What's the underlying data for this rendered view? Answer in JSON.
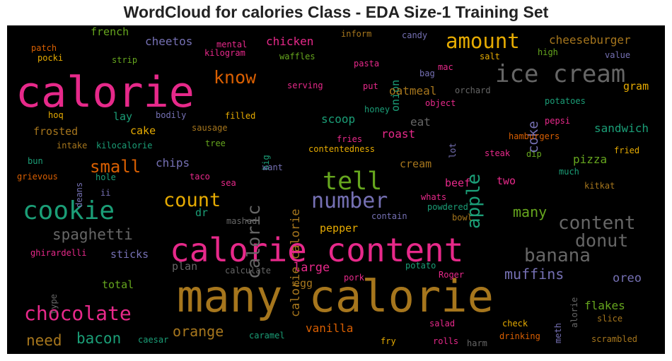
{
  "title": "WordCloud for calories Class - EDA Size-1 Training Set",
  "colors": {
    "pink": "#e7298a",
    "gold": "#a6761d",
    "teal": "#1b9e77",
    "orange": "#d95f02",
    "purple": "#7570b3",
    "green": "#66a61e",
    "yellow": "#e6ab02",
    "gray": "#666666"
  },
  "words": [
    {
      "text": "calorie",
      "color": "pink"
    },
    {
      "text": "many calorie",
      "color": "gold"
    },
    {
      "text": "calorie content",
      "color": "pink"
    },
    {
      "text": "ice cream",
      "color": "gray"
    },
    {
      "text": "cookie",
      "color": "teal"
    },
    {
      "text": "tell",
      "color": "green"
    },
    {
      "text": "number",
      "color": "purple"
    },
    {
      "text": "chocolate",
      "color": "pink"
    },
    {
      "text": "amount",
      "color": "yellow"
    },
    {
      "text": "caloric",
      "color": "gray"
    },
    {
      "text": "apple",
      "color": "teal"
    },
    {
      "text": "count",
      "color": "yellow"
    },
    {
      "text": "content",
      "color": "gray"
    },
    {
      "text": "banana",
      "color": "gray"
    },
    {
      "text": "donut",
      "color": "gray"
    },
    {
      "text": "know",
      "color": "orange"
    },
    {
      "text": "small",
      "color": "orange"
    },
    {
      "text": "spaghetti",
      "color": "gray"
    },
    {
      "text": "muffins",
      "color": "purple"
    },
    {
      "text": "bacon",
      "color": "teal"
    },
    {
      "text": "need",
      "color": "gold"
    },
    {
      "text": "orange",
      "color": "gold"
    },
    {
      "text": "many",
      "color": "green"
    },
    {
      "text": "coke",
      "color": "purple"
    },
    {
      "text": "calorie calorie",
      "color": "gold"
    },
    {
      "text": "cheeseburger",
      "color": "gold"
    },
    {
      "text": "onion",
      "color": "teal"
    },
    {
      "text": "pizza",
      "color": "green"
    },
    {
      "text": "sandwich",
      "color": "teal"
    },
    {
      "text": "flakes",
      "color": "green"
    },
    {
      "text": "oreo",
      "color": "purple"
    },
    {
      "text": "vanilla",
      "color": "orange"
    },
    {
      "text": "large",
      "color": "pink"
    },
    {
      "text": "oatmeal",
      "color": "gold"
    },
    {
      "text": "chicken",
      "color": "pink"
    },
    {
      "text": "cheetos",
      "color": "purple"
    },
    {
      "text": "french",
      "color": "green"
    },
    {
      "text": "frosted",
      "color": "gold"
    },
    {
      "text": "cake",
      "color": "yellow"
    },
    {
      "text": "lay",
      "color": "teal"
    },
    {
      "text": "chips",
      "color": "purple"
    },
    {
      "text": "scoop",
      "color": "teal"
    },
    {
      "text": "roast",
      "color": "pink"
    },
    {
      "text": "eat",
      "color": "gray"
    },
    {
      "text": "cream",
      "color": "gold"
    },
    {
      "text": "beef",
      "color": "pink"
    },
    {
      "text": "two",
      "color": "pink"
    },
    {
      "text": "pepper",
      "color": "yellow"
    },
    {
      "text": "sticks",
      "color": "purple"
    },
    {
      "text": "plan",
      "color": "gray"
    },
    {
      "text": "total",
      "color": "green"
    },
    {
      "text": "egg",
      "color": "gold"
    },
    {
      "text": "gram",
      "color": "yellow"
    },
    {
      "text": "dr",
      "color": "teal"
    },
    {
      "text": "patch",
      "color": "orange"
    },
    {
      "text": "pocki",
      "color": "yellow"
    },
    {
      "text": "strip",
      "color": "green"
    },
    {
      "text": "mental",
      "color": "pink"
    },
    {
      "text": "kilogram",
      "color": "pink"
    },
    {
      "text": "waffles",
      "color": "green"
    },
    {
      "text": "inform",
      "color": "gold"
    },
    {
      "text": "candy",
      "color": "purple"
    },
    {
      "text": "pasta",
      "color": "pink"
    },
    {
      "text": "salt",
      "color": "yellow"
    },
    {
      "text": "high",
      "color": "green"
    },
    {
      "text": "value",
      "color": "purple"
    },
    {
      "text": "mac",
      "color": "pink"
    },
    {
      "text": "bag",
      "color": "purple"
    },
    {
      "text": "put",
      "color": "pink"
    },
    {
      "text": "orchard",
      "color": "gray"
    },
    {
      "text": "serving",
      "color": "pink"
    },
    {
      "text": "potatoes",
      "color": "teal"
    },
    {
      "text": "hoq",
      "color": "yellow"
    },
    {
      "text": "bodily",
      "color": "purple"
    },
    {
      "text": "filled",
      "color": "yellow"
    },
    {
      "text": "sausage",
      "color": "gold"
    },
    {
      "text": "object",
      "color": "pink"
    },
    {
      "text": "honey",
      "color": "teal"
    },
    {
      "text": "pepsi",
      "color": "pink"
    },
    {
      "text": "lot",
      "color": "purple"
    },
    {
      "text": "hamburgers",
      "color": "orange"
    },
    {
      "text": "intake",
      "color": "gold"
    },
    {
      "text": "kilocalorie",
      "color": "teal"
    },
    {
      "text": "tree",
      "color": "green"
    },
    {
      "text": "big",
      "color": "teal"
    },
    {
      "text": "fries",
      "color": "pink"
    },
    {
      "text": "contentedness",
      "color": "yellow"
    },
    {
      "text": "steak",
      "color": "pink"
    },
    {
      "text": "dip",
      "color": "green"
    },
    {
      "text": "fried",
      "color": "yellow"
    },
    {
      "text": "bun",
      "color": "teal"
    },
    {
      "text": "deans",
      "color": "purple"
    },
    {
      "text": "hole",
      "color": "teal"
    },
    {
      "text": "taco",
      "color": "pink"
    },
    {
      "text": "want",
      "color": "purple"
    },
    {
      "text": "much",
      "color": "teal"
    },
    {
      "text": "grievous",
      "color": "orange"
    },
    {
      "text": "ii",
      "color": "purple"
    },
    {
      "text": "sea",
      "color": "pink"
    },
    {
      "text": "kitkat",
      "color": "gold"
    },
    {
      "text": "whats",
      "color": "pink"
    },
    {
      "text": "powdered",
      "color": "teal"
    },
    {
      "text": "bowl",
      "color": "gold"
    },
    {
      "text": "contain",
      "color": "purple"
    },
    {
      "text": "mashed",
      "color": "gray"
    },
    {
      "text": "ghirardelli",
      "color": "pink"
    },
    {
      "text": "calculate",
      "color": "gray"
    },
    {
      "text": "potato",
      "color": "teal"
    },
    {
      "text": "pork",
      "color": "pink"
    },
    {
      "text": "Roger",
      "color": "pink"
    },
    {
      "text": "type",
      "color": "gray"
    },
    {
      "text": "meth",
      "color": "purple"
    },
    {
      "text": "alorie",
      "color": "gray"
    },
    {
      "text": "slice",
      "color": "gold"
    },
    {
      "text": "check",
      "color": "yellow"
    },
    {
      "text": "salad",
      "color": "pink"
    },
    {
      "text": "drinking",
      "color": "orange"
    },
    {
      "text": "caesar",
      "color": "teal"
    },
    {
      "text": "caramel",
      "color": "teal"
    },
    {
      "text": "fry",
      "color": "yellow"
    },
    {
      "text": "rolls",
      "color": "pink"
    },
    {
      "text": "harm",
      "color": "gray"
    },
    {
      "text": "scrambled",
      "color": "gold"
    }
  ]
}
